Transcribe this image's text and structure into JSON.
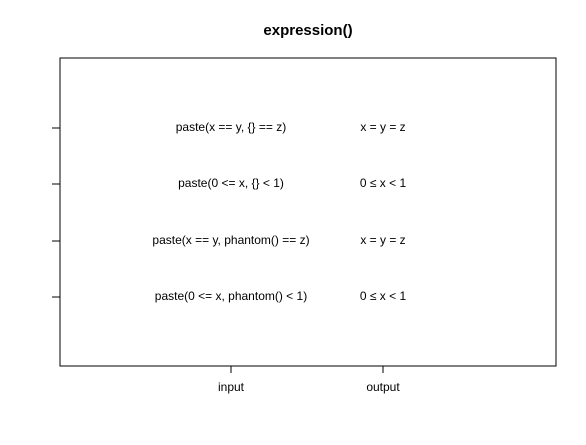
{
  "title": "expression()",
  "columns": [
    "input",
    "output"
  ],
  "rows": [
    [
      "paste(x == y, {} == z)",
      "x = y = z"
    ],
    [
      "paste(0 <= x, {} < 1)",
      "0 ≤ x < 1"
    ],
    [
      "paste(x == y, phantom() == z)",
      "x = y = z"
    ],
    [
      "paste(0 <= x, phantom() < 1)",
      "0 ≤ x < 1"
    ]
  ]
}
